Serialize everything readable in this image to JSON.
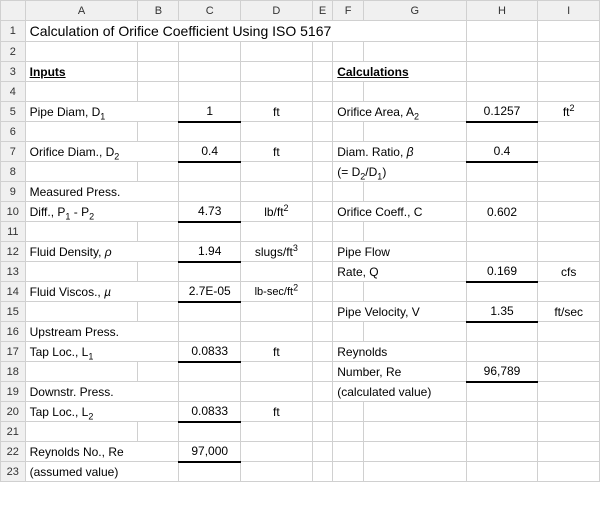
{
  "column_headers": [
    "A",
    "B",
    "C",
    "D",
    "E",
    "F",
    "G",
    "H",
    "I"
  ],
  "row_numbers": [
    "1",
    "2",
    "3",
    "4",
    "5",
    "6",
    "7",
    "8",
    "9",
    "10",
    "11",
    "12",
    "13",
    "14",
    "15",
    "16",
    "17",
    "18",
    "19",
    "20",
    "21",
    "22",
    "23"
  ],
  "title": "Calculation of Orifice Coefficient Using ISO 5167",
  "inputs_header": "Inputs",
  "calcs_header": "Calculations",
  "labels": {
    "pipe_diam_pre": "Pipe Diam, D",
    "orifice_diam_pre": "Orifice Diam., D",
    "meas_press": "Measured Press.",
    "diff_pre": " Diff., P",
    "diff_mid": " - P",
    "fluid_density_pre": "Fluid Density, ",
    "fluid_viscos_pre": "Fluid Viscos., ",
    "upstream_press": "Upstream Press.",
    "tap_loc_L1_pre": " Tap Loc., L",
    "downstr_press": "Downstr. Press.",
    "tap_loc_L2_pre": " Tap Loc., L",
    "reynolds_inp": "Reynolds No., Re",
    "assumed": " (assumed value)",
    "orifice_area_pre": "Orifice Area, A",
    "diam_ratio_pre": "Diam. Ratio, ",
    "diam_ratio_eq_pre": "(= D",
    "diam_ratio_eq_mid": "/D",
    "diam_ratio_eq_end": ")",
    "orifice_coeff": "Orifice Coeff., C",
    "pipe_flow": "Pipe Flow",
    "rate_q": " Rate, Q",
    "pipe_velocity": "Pipe Velocity, V",
    "reynolds_out": "Reynolds",
    "number_re": " Number, Re",
    "calculated": "(calculated value)"
  },
  "greek": {
    "rho": "ρ",
    "mu": "µ",
    "beta": "β"
  },
  "values": {
    "D1": "1",
    "D2": "0.4",
    "P1P2": "4.73",
    "rho": "1.94",
    "mu": "2.7E-05",
    "L1": "0.0833",
    "L2": "0.0833",
    "Re_in": "97,000",
    "A2": "0.1257",
    "beta": "0.4",
    "C": "0.602",
    "Q": "0.169",
    "V": "1.35",
    "Re_out": "96,789"
  },
  "units": {
    "ft": "ft",
    "ft2_pre": "ft",
    "lbft2_pre": "lb/ft",
    "slugsft3_pre": "slugs/ft",
    "lbsecft2_pre": "lb-sec/ft",
    "cfs": "cfs",
    "ftsec": "ft/sec"
  }
}
